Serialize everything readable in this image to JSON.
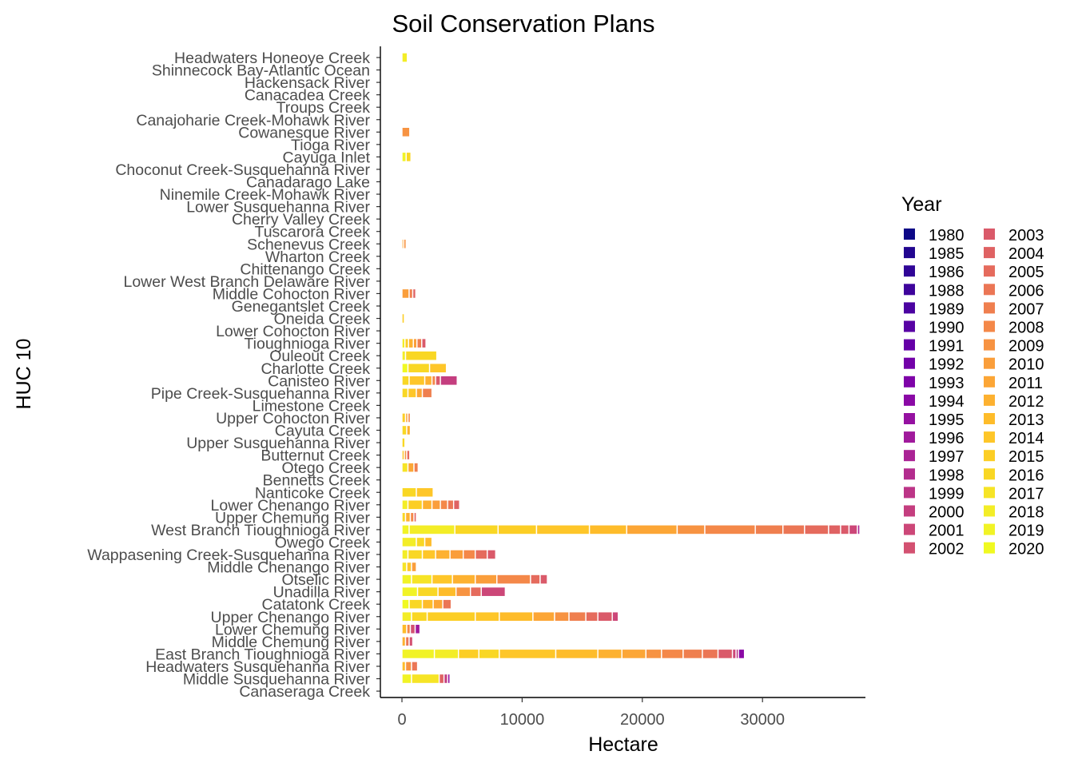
{
  "chart_data": {
    "type": "bar",
    "orientation": "horizontal",
    "stacked": true,
    "title": "Soil Conservation Plans",
    "xlabel": "Hectare",
    "ylabel": "HUC 10",
    "xlim": [
      0,
      38500
    ],
    "x_ticks": [
      0,
      10000,
      20000,
      30000
    ],
    "x_tick_labels": [
      "0",
      "10000",
      "20000",
      "30000"
    ],
    "grid": false,
    "legend": {
      "title": "Year",
      "placement": "right",
      "columns": 2
    },
    "years": [
      "1980",
      "1985",
      "1986",
      "1988",
      "1989",
      "1990",
      "1991",
      "1992",
      "1993",
      "1994",
      "1995",
      "1996",
      "1997",
      "1998",
      "1999",
      "2000",
      "2001",
      "2002",
      "2003",
      "2004",
      "2005",
      "2006",
      "2007",
      "2008",
      "2009",
      "2010",
      "2011",
      "2012",
      "2013",
      "2014",
      "2015",
      "2016",
      "2017",
      "2018",
      "2019",
      "2020"
    ],
    "colors": [
      "#0d0887",
      "#220690",
      "#300597",
      "#3e049c",
      "#4b03a1",
      "#5802a4",
      "#6500a7",
      "#7201a8",
      "#7e03a8",
      "#8a09a5",
      "#9511a1",
      "#a01a9c",
      "#aa2395",
      "#b32c8e",
      "#bc3587",
      "#c43e7f",
      "#cc4778",
      "#d35171",
      "#da5a6a",
      "#df6263",
      "#e56b5d",
      "#eb7655",
      "#ef7f4f",
      "#f48849",
      "#f79342",
      "#fa9e3b",
      "#fca636",
      "#fdb130",
      "#febc2a",
      "#fec629",
      "#fcce25",
      "#f9d724",
      "#f6e426",
      "#f3ed27",
      "#f1f326",
      "#f0f921"
    ],
    "categories": [
      "Headwaters Honeoye Creek",
      "Shinnecock Bay-Atlantic Ocean",
      "Hackensack River",
      "Canacadea Creek",
      "Troups Creek",
      "Canajoharie Creek-Mohawk River",
      "Cowanesque River",
      "Tioga River",
      "Cayuga Inlet",
      "Choconut Creek-Susquehanna River",
      "Canadarago Lake",
      "Ninemile Creek-Mohawk River",
      "Lower Susquehanna River",
      "Cherry Valley Creek",
      "Tuscarora Creek",
      "Schenevus Creek",
      "Wharton Creek",
      "Chittenango Creek",
      "Lower West Branch Delaware River",
      "Middle Cohocton River",
      "Genegantslet Creek",
      "Oneida Creek",
      "Lower Cohocton River",
      "Tioughnioga River",
      "Ouleout Creek",
      "Charlotte Creek",
      "Canisteo River",
      "Pipe Creek-Susquehanna River",
      "Limestone Creek",
      "Upper Cohocton River",
      "Cayuta Creek",
      "Upper Susquehanna River",
      "Butternut Creek",
      "Otego Creek",
      "Bennetts Creek",
      "Nanticoke Creek",
      "Lower Chenango River",
      "Upper Chemung River",
      "West Branch Tioughnioga River",
      "Owego Creek",
      "Wappasening Creek-Susquehanna River",
      "Middle Chenango River",
      "Otselic River",
      "Unadilla River",
      "Catatonk Creek",
      "Upper Chenango River",
      "Lower Chemung River",
      "Middle Chemung River",
      "East Branch Tioughnioga River",
      "Headwaters Susquehanna River",
      "Middle Susquehanna River",
      "Canaseraga Creek"
    ],
    "series": [
      {
        "category": "Headwaters Honeoye Creek",
        "segments": [
          [
            "2018",
            450
          ]
        ]
      },
      {
        "category": "Cowanesque River",
        "segments": [
          [
            "2009",
            650
          ]
        ]
      },
      {
        "category": "Cayuga Inlet",
        "segments": [
          [
            "2019",
            350
          ],
          [
            "2016",
            400
          ]
        ]
      },
      {
        "category": "Schenevus Creek",
        "segments": [
          [
            "2011",
            150
          ],
          [
            "2009",
            200
          ]
        ]
      },
      {
        "category": "Middle Cohocton River",
        "segments": [
          [
            "2010",
            600
          ],
          [
            "2007",
            300
          ],
          [
            "2004",
            250
          ]
        ]
      },
      {
        "category": "Oneida Creek",
        "segments": [
          [
            "2015",
            200
          ]
        ]
      },
      {
        "category": "Tioughnioga River",
        "segments": [
          [
            "2018",
            250
          ],
          [
            "2015",
            300
          ],
          [
            "2012",
            400
          ],
          [
            "2010",
            300
          ],
          [
            "2007",
            400
          ],
          [
            "2003",
            350
          ]
        ]
      },
      {
        "category": "Ouleout Creek",
        "segments": [
          [
            "2018",
            300
          ],
          [
            "2016",
            2600
          ]
        ]
      },
      {
        "category": "Charlotte Creek",
        "segments": [
          [
            "2020",
            500
          ],
          [
            "2016",
            1800
          ],
          [
            "2014",
            1400
          ]
        ]
      },
      {
        "category": "Canisteo River",
        "segments": [
          [
            "2016",
            600
          ],
          [
            "2014",
            1300
          ],
          [
            "2012",
            600
          ],
          [
            "2008",
            300
          ],
          [
            "2003",
            400
          ],
          [
            "2000",
            1400
          ]
        ]
      },
      {
        "category": "Pipe Creek-Susquehanna River",
        "segments": [
          [
            "2016",
            500
          ],
          [
            "2014",
            700
          ],
          [
            "2011",
            500
          ],
          [
            "2007",
            800
          ]
        ]
      },
      {
        "category": "Upper Cohocton River",
        "segments": [
          [
            "2015",
            300
          ],
          [
            "2011",
            200
          ],
          [
            "2008",
            200
          ]
        ]
      },
      {
        "category": "Cayuta Creek",
        "segments": [
          [
            "2016",
            400
          ],
          [
            "2012",
            300
          ]
        ]
      },
      {
        "category": "Upper Susquehanna River",
        "segments": [
          [
            "2016",
            250
          ]
        ]
      },
      {
        "category": "Butternut Creek",
        "segments": [
          [
            "2014",
            200
          ],
          [
            "2009",
            200
          ],
          [
            "2005",
            250
          ]
        ]
      },
      {
        "category": "Otego Creek",
        "segments": [
          [
            "2017",
            500
          ],
          [
            "2011",
            500
          ],
          [
            "2007",
            350
          ]
        ]
      },
      {
        "category": "Nanticoke Creek",
        "segments": [
          [
            "2016",
            1200
          ],
          [
            "2014",
            1400
          ]
        ]
      },
      {
        "category": "Lower Chenango River",
        "segments": [
          [
            "2018",
            500
          ],
          [
            "2015",
            1200
          ],
          [
            "2012",
            800
          ],
          [
            "2010",
            700
          ],
          [
            "2008",
            600
          ],
          [
            "2006",
            500
          ],
          [
            "2004",
            500
          ]
        ]
      },
      {
        "category": "Upper Chemung River",
        "segments": [
          [
            "2016",
            300
          ],
          [
            "2012",
            400
          ],
          [
            "2008",
            300
          ],
          [
            "2004",
            200
          ]
        ]
      },
      {
        "category": "West Branch Tioughnioga River",
        "segments": [
          [
            "2019",
            600
          ],
          [
            "2018",
            3800
          ],
          [
            "2016",
            3600
          ],
          [
            "2015",
            3200
          ],
          [
            "2014",
            4400
          ],
          [
            "2013",
            3100
          ],
          [
            "2011",
            4200
          ],
          [
            "2009",
            2300
          ],
          [
            "2008",
            4200
          ],
          [
            "2007",
            2300
          ],
          [
            "2006",
            1800
          ],
          [
            "2005",
            2000
          ],
          [
            "2004",
            1000
          ],
          [
            "2003",
            700
          ],
          [
            "2001",
            700
          ],
          [
            "1997",
            200
          ]
        ]
      },
      {
        "category": "Owego Creek",
        "segments": [
          [
            "2018",
            1200
          ],
          [
            "2016",
            700
          ],
          [
            "2013",
            600
          ]
        ]
      },
      {
        "category": "Wappasening Creek-Susquehanna River",
        "segments": [
          [
            "2018",
            500
          ],
          [
            "2016",
            1200
          ],
          [
            "2014",
            1100
          ],
          [
            "2012",
            1200
          ],
          [
            "2010",
            1100
          ],
          [
            "2008",
            1000
          ],
          [
            "2005",
            1000
          ],
          [
            "2003",
            700
          ]
        ]
      },
      {
        "category": "Middle Chenango River",
        "segments": [
          [
            "2017",
            400
          ],
          [
            "2014",
            400
          ],
          [
            "2010",
            400
          ]
        ]
      },
      {
        "category": "Otselic River",
        "segments": [
          [
            "2019",
            800
          ],
          [
            "2017",
            1700
          ],
          [
            "2014",
            1700
          ],
          [
            "2012",
            1900
          ],
          [
            "2010",
            1800
          ],
          [
            "2008",
            2800
          ],
          [
            "2005",
            800
          ],
          [
            "2003",
            600
          ]
        ]
      },
      {
        "category": "Unadilla River",
        "segments": [
          [
            "2019",
            1300
          ],
          [
            "2016",
            1700
          ],
          [
            "2013",
            1500
          ],
          [
            "2009",
            1200
          ],
          [
            "2005",
            900
          ],
          [
            "2001",
            2000
          ]
        ]
      },
      {
        "category": "Catatonk Creek",
        "segments": [
          [
            "2020",
            600
          ],
          [
            "2016",
            1100
          ],
          [
            "2013",
            900
          ],
          [
            "2011",
            800
          ],
          [
            "2006",
            700
          ]
        ]
      },
      {
        "category": "Upper Chenango River",
        "segments": [
          [
            "2018",
            800
          ],
          [
            "2016",
            1300
          ],
          [
            "2015",
            4000
          ],
          [
            "2014",
            2000
          ],
          [
            "2013",
            2800
          ],
          [
            "2011",
            1800
          ],
          [
            "2009",
            1200
          ],
          [
            "2007",
            1400
          ],
          [
            "2005",
            1000
          ],
          [
            "2003",
            1200
          ],
          [
            "2001",
            500
          ]
        ]
      },
      {
        "category": "Lower Chemung River",
        "segments": [
          [
            "2013",
            400
          ],
          [
            "2008",
            300
          ],
          [
            "2002",
            400
          ],
          [
            "1996",
            400
          ]
        ]
      },
      {
        "category": "Middle Chemung River",
        "segments": [
          [
            "2012",
            300
          ],
          [
            "2006",
            300
          ],
          [
            "2002",
            300
          ]
        ]
      },
      {
        "category": "East Branch Tioughnioga River",
        "segments": [
          [
            "2019",
            2700
          ],
          [
            "2018",
            2000
          ],
          [
            "2015",
            1700
          ],
          [
            "2016",
            1700
          ],
          [
            "2014",
            4700
          ],
          [
            "2013",
            3500
          ],
          [
            "2012",
            2000
          ],
          [
            "2011",
            2000
          ],
          [
            "2009",
            1300
          ],
          [
            "2008",
            1800
          ],
          [
            "2007",
            1600
          ],
          [
            "2006",
            1300
          ],
          [
            "2003",
            1200
          ],
          [
            "2001",
            300
          ],
          [
            "1999",
            200
          ],
          [
            "1994",
            500
          ]
        ]
      },
      {
        "category": "Headwaters Susquehanna River",
        "segments": [
          [
            "2013",
            300
          ],
          [
            "2009",
            500
          ],
          [
            "2006",
            500
          ]
        ]
      },
      {
        "category": "Middle Susquehanna River",
        "segments": [
          [
            "2019",
            800
          ],
          [
            "2017",
            2300
          ],
          [
            "2004",
            400
          ],
          [
            "2000",
            300
          ],
          [
            "1995",
            200
          ]
        ]
      }
    ]
  }
}
